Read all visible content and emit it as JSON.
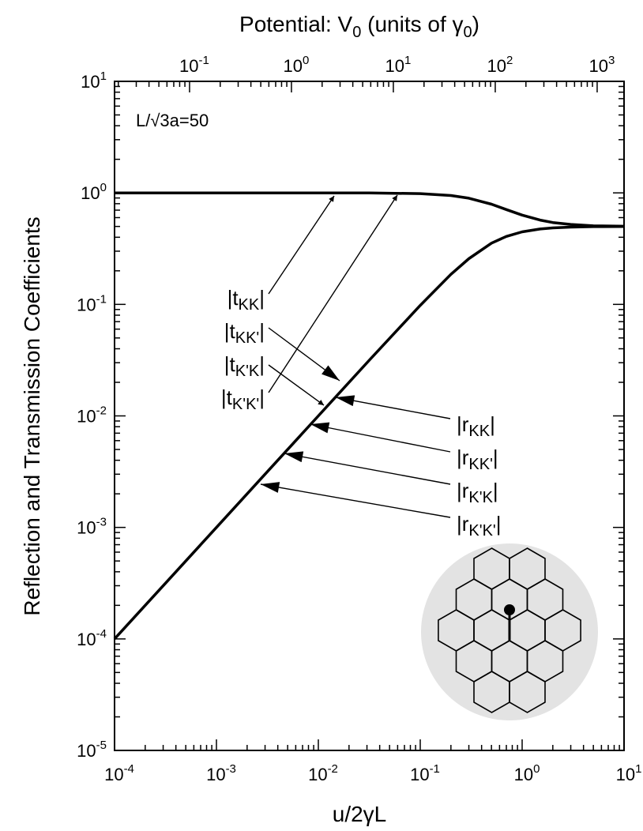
{
  "chart_data": {
    "type": "line",
    "x_title": "u/2γL",
    "y_title": "Reflection and Transmission Coefficients",
    "x2_title": [
      "Potential: V",
      "0",
      " (units of γ",
      "0",
      ")"
    ],
    "note": "L/√3a=50",
    "x": [
      0.0001,
      0.000316,
      0.001,
      0.00316,
      0.01,
      0.0316,
      0.1,
      0.2,
      0.3,
      0.5,
      0.7,
      1,
      1.5,
      2,
      3,
      5,
      10
    ],
    "series": [
      {
        "color": "#000000",
        "values": [
          1,
          1,
          1,
          1,
          1,
          0.9985,
          0.985,
          0.947,
          0.896,
          0.791,
          0.709,
          0.632,
          0.57,
          0.542,
          0.521,
          0.506,
          0.502
        ]
      },
      {
        "color": "#000000",
        "values": [
          0.0001,
          0.000316,
          0.001,
          0.00316,
          0.01,
          0.0316,
          0.098,
          0.186,
          0.257,
          0.354,
          0.407,
          0.447,
          0.474,
          0.485,
          0.493,
          0.498,
          0.499
        ]
      }
    ],
    "xscale": "log",
    "yscale": "log",
    "minor_ticks": true,
    "xlim": [
      0.0001,
      10
    ],
    "ylim": [
      1e-05,
      10
    ],
    "x2lim": [
      0.01836,
      1836
    ],
    "xticks": [
      {
        "value": 0.0001,
        "label": "10",
        "exp": "-4"
      },
      {
        "value": 0.001,
        "label": "10",
        "exp": "-3"
      },
      {
        "value": 0.01,
        "label": "10",
        "exp": "-2"
      },
      {
        "value": 0.1,
        "label": "10",
        "exp": "-1"
      },
      {
        "value": 1,
        "label": "10",
        "exp": "0"
      },
      {
        "value": 10,
        "label": "10",
        "exp": "1"
      }
    ],
    "yticks": [
      {
        "value": 1e-05,
        "label": "10",
        "exp": "-5"
      },
      {
        "value": 0.0001,
        "label": "10",
        "exp": "-4"
      },
      {
        "value": 0.001,
        "label": "10",
        "exp": "-3"
      },
      {
        "value": 0.01,
        "label": "10",
        "exp": "-2"
      },
      {
        "value": 0.1,
        "label": "10",
        "exp": "-1"
      },
      {
        "value": 1,
        "label": "10",
        "exp": "0"
      },
      {
        "value": 10,
        "label": "10",
        "exp": "1"
      }
    ],
    "x2ticks": [
      {
        "value": 0.1,
        "label": "10",
        "exp": "-1"
      },
      {
        "value": 1,
        "label": "10",
        "exp": "0"
      },
      {
        "value": 10,
        "label": "10",
        "exp": "1"
      },
      {
        "value": 100,
        "label": "10",
        "exp": "2"
      },
      {
        "value": 1000,
        "label": "10",
        "exp": "3"
      }
    ],
    "annotations": [
      {
        "prefix": "|t",
        "sub": "KK",
        "suffix": "|"
      },
      {
        "prefix": "|t",
        "sub": "KK'",
        "suffix": "|"
      },
      {
        "prefix": "|t",
        "sub": "K'K",
        "suffix": "|"
      },
      {
        "prefix": "|t",
        "sub": "K'K'",
        "suffix": "|"
      },
      {
        "prefix": "|r",
        "sub": "KK",
        "suffix": "|"
      },
      {
        "prefix": "|r",
        "sub": "KK'",
        "suffix": "|"
      },
      {
        "prefix": "|r",
        "sub": "K'K",
        "suffix": "|"
      },
      {
        "prefix": "|r",
        "sub": "K'K'",
        "suffix": "|"
      }
    ]
  }
}
